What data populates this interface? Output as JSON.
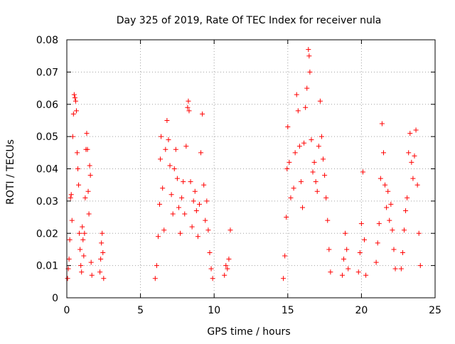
{
  "chart_data": {
    "type": "scatter",
    "title": "Day 325 of 2019, Rate Of TEC Index for receiver nula",
    "xlabel": "GPS time / hours",
    "ylabel": "ROTI / TECUs",
    "xlim": [
      0,
      25
    ],
    "ylim": [
      0,
      0.08
    ],
    "xticks": [
      "0",
      "5",
      "10",
      "15",
      "20",
      "25"
    ],
    "yticks": [
      "0",
      "0.01",
      "0.02",
      "0.03",
      "0.04",
      "0.05",
      "0.06",
      "0.07",
      "0.08"
    ],
    "grid": true,
    "marker": "+",
    "color": "#ff0000",
    "points": [
      [
        0.05,
        0.006
      ],
      [
        0.1,
        0.009
      ],
      [
        0.15,
        0.012
      ],
      [
        0.2,
        0.018
      ],
      [
        0.25,
        0.031
      ],
      [
        0.3,
        0.032
      ],
      [
        0.35,
        0.024
      ],
      [
        0.4,
        0.05
      ],
      [
        0.45,
        0.057
      ],
      [
        0.5,
        0.063
      ],
      [
        0.55,
        0.062
      ],
      [
        0.6,
        0.061
      ],
      [
        0.65,
        0.058
      ],
      [
        0.7,
        0.045
      ],
      [
        0.75,
        0.04
      ],
      [
        0.8,
        0.035
      ],
      [
        0.85,
        0.02
      ],
      [
        0.9,
        0.015
      ],
      [
        0.95,
        0.01
      ],
      [
        1.0,
        0.008
      ],
      [
        1.05,
        0.022
      ],
      [
        1.1,
        0.018
      ],
      [
        1.15,
        0.013
      ],
      [
        1.2,
        0.02
      ],
      [
        1.25,
        0.031
      ],
      [
        1.3,
        0.046
      ],
      [
        1.35,
        0.051
      ],
      [
        1.4,
        0.046
      ],
      [
        1.45,
        0.033
      ],
      [
        1.5,
        0.026
      ],
      [
        1.55,
        0.041
      ],
      [
        1.6,
        0.038
      ],
      [
        1.65,
        0.011
      ],
      [
        1.7,
        0.007
      ],
      [
        2.25,
        0.008
      ],
      [
        2.3,
        0.012
      ],
      [
        2.35,
        0.017
      ],
      [
        2.4,
        0.02
      ],
      [
        2.45,
        0.014
      ],
      [
        2.5,
        0.006
      ],
      [
        6.0,
        0.006
      ],
      [
        6.1,
        0.01
      ],
      [
        6.2,
        0.019
      ],
      [
        6.3,
        0.029
      ],
      [
        6.35,
        0.043
      ],
      [
        6.4,
        0.05
      ],
      [
        6.5,
        0.034
      ],
      [
        6.6,
        0.021
      ],
      [
        6.7,
        0.046
      ],
      [
        6.8,
        0.055
      ],
      [
        6.9,
        0.049
      ],
      [
        7.0,
        0.041
      ],
      [
        7.1,
        0.032
      ],
      [
        7.2,
        0.026
      ],
      [
        7.3,
        0.04
      ],
      [
        7.4,
        0.046
      ],
      [
        7.5,
        0.037
      ],
      [
        7.6,
        0.028
      ],
      [
        7.7,
        0.02
      ],
      [
        7.8,
        0.031
      ],
      [
        7.9,
        0.036
      ],
      [
        8.0,
        0.026
      ],
      [
        8.1,
        0.047
      ],
      [
        8.2,
        0.059
      ],
      [
        8.25,
        0.061
      ],
      [
        8.3,
        0.058
      ],
      [
        8.4,
        0.036
      ],
      [
        8.5,
        0.022
      ],
      [
        8.6,
        0.03
      ],
      [
        8.7,
        0.033
      ],
      [
        8.8,
        0.027
      ],
      [
        8.9,
        0.019
      ],
      [
        9.0,
        0.029
      ],
      [
        9.1,
        0.045
      ],
      [
        9.2,
        0.057
      ],
      [
        9.3,
        0.035
      ],
      [
        9.4,
        0.024
      ],
      [
        9.5,
        0.03
      ],
      [
        9.6,
        0.021
      ],
      [
        9.7,
        0.014
      ],
      [
        9.8,
        0.009
      ],
      [
        9.9,
        0.006
      ],
      [
        10.7,
        0.007
      ],
      [
        10.8,
        0.01
      ],
      [
        10.9,
        0.009
      ],
      [
        11.0,
        0.012
      ],
      [
        11.1,
        0.021
      ],
      [
        14.7,
        0.006
      ],
      [
        14.8,
        0.013
      ],
      [
        14.9,
        0.025
      ],
      [
        14.95,
        0.04
      ],
      [
        15.0,
        0.053
      ],
      [
        15.1,
        0.042
      ],
      [
        15.2,
        0.031
      ],
      [
        15.4,
        0.034
      ],
      [
        15.5,
        0.045
      ],
      [
        15.6,
        0.063
      ],
      [
        15.7,
        0.058
      ],
      [
        15.8,
        0.047
      ],
      [
        15.9,
        0.036
      ],
      [
        16.0,
        0.028
      ],
      [
        16.1,
        0.048
      ],
      [
        16.2,
        0.059
      ],
      [
        16.3,
        0.065
      ],
      [
        16.4,
        0.077
      ],
      [
        16.45,
        0.075
      ],
      [
        16.5,
        0.07
      ],
      [
        16.6,
        0.049
      ],
      [
        16.7,
        0.039
      ],
      [
        16.8,
        0.042
      ],
      [
        16.9,
        0.036
      ],
      [
        17.0,
        0.033
      ],
      [
        17.1,
        0.047
      ],
      [
        17.2,
        0.061
      ],
      [
        17.3,
        0.05
      ],
      [
        17.4,
        0.043
      ],
      [
        17.5,
        0.038
      ],
      [
        17.6,
        0.031
      ],
      [
        17.7,
        0.024
      ],
      [
        17.8,
        0.015
      ],
      [
        17.9,
        0.008
      ],
      [
        18.7,
        0.007
      ],
      [
        18.8,
        0.012
      ],
      [
        18.9,
        0.02
      ],
      [
        19.0,
        0.015
      ],
      [
        19.1,
        0.009
      ],
      [
        19.8,
        0.008
      ],
      [
        19.9,
        0.014
      ],
      [
        20.0,
        0.023
      ],
      [
        20.1,
        0.039
      ],
      [
        20.2,
        0.018
      ],
      [
        20.3,
        0.007
      ],
      [
        21.0,
        0.011
      ],
      [
        21.1,
        0.017
      ],
      [
        21.2,
        0.023
      ],
      [
        21.3,
        0.037
      ],
      [
        21.4,
        0.054
      ],
      [
        21.5,
        0.045
      ],
      [
        21.6,
        0.035
      ],
      [
        21.7,
        0.028
      ],
      [
        21.8,
        0.033
      ],
      [
        21.9,
        0.024
      ],
      [
        22.0,
        0.029
      ],
      [
        22.1,
        0.021
      ],
      [
        22.2,
        0.015
      ],
      [
        22.3,
        0.009
      ],
      [
        22.7,
        0.009
      ],
      [
        22.8,
        0.014
      ],
      [
        22.9,
        0.021
      ],
      [
        23.0,
        0.027
      ],
      [
        23.1,
        0.031
      ],
      [
        23.2,
        0.045
      ],
      [
        23.3,
        0.051
      ],
      [
        23.4,
        0.042
      ],
      [
        23.5,
        0.037
      ],
      [
        23.6,
        0.044
      ],
      [
        23.7,
        0.052
      ],
      [
        23.8,
        0.035
      ],
      [
        23.9,
        0.02
      ],
      [
        24.0,
        0.01
      ]
    ]
  }
}
